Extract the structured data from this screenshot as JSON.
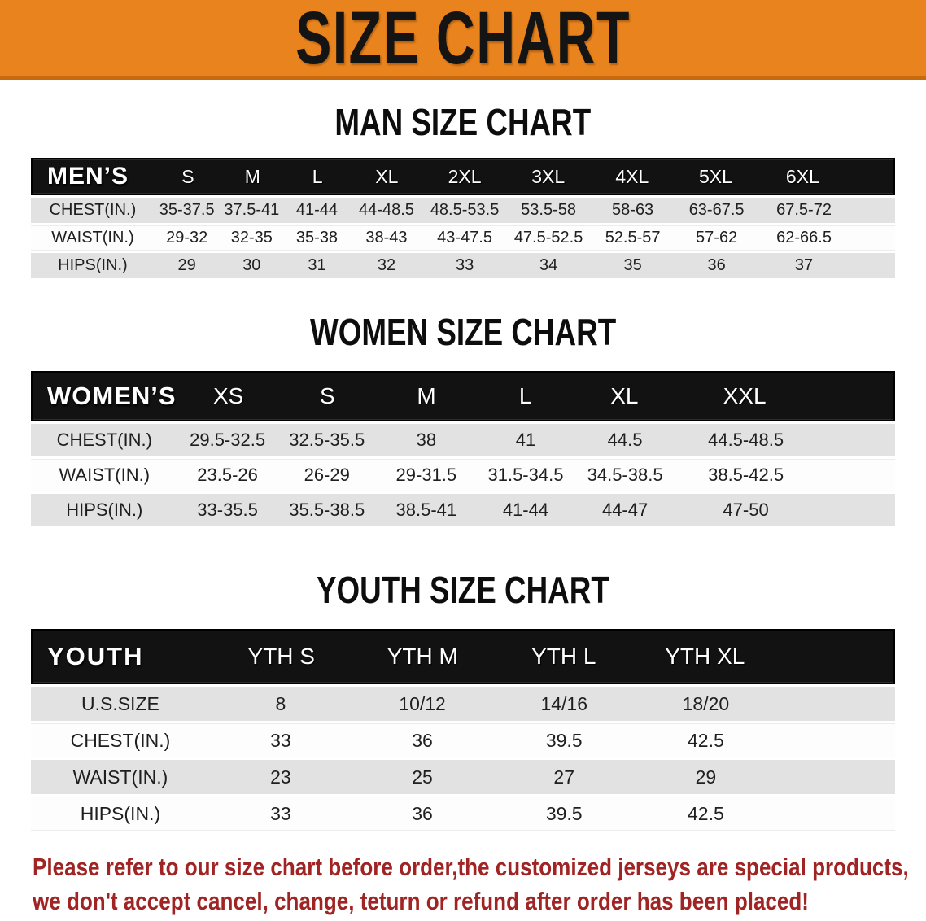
{
  "banner": {
    "title": "SIZE CHART"
  },
  "colors": {
    "banner_orange": "#E8831D",
    "header_black": "#121212",
    "row_gray": "#E2E2E2",
    "disclaimer_red": "#A02423"
  },
  "sections": {
    "men": {
      "heading": "MAN SIZE CHART",
      "corner": "MEN’S",
      "columns": [
        "S",
        "M",
        "L",
        "XL",
        "2XL",
        "3XL",
        "4XL",
        "5XL",
        "6XL"
      ],
      "rows": [
        {
          "label": "CHEST(IN.)",
          "values": [
            "35-37.5",
            "37.5-41",
            "41-44",
            "44-48.5",
            "48.5-53.5",
            "53.5-58",
            "58-63",
            "63-67.5",
            "67.5-72"
          ]
        },
        {
          "label": "WAIST(IN.)",
          "values": [
            "29-32",
            "32-35",
            "35-38",
            "38-43",
            "43-47.5",
            "47.5-52.5",
            "52.5-57",
            "57-62",
            "62-66.5"
          ]
        },
        {
          "label": "HIPS(IN.)",
          "values": [
            "29",
            "30",
            "31",
            "32",
            "33",
            "34",
            "35",
            "36",
            "37"
          ]
        }
      ]
    },
    "women": {
      "heading": "WOMEN SIZE CHART",
      "corner": "WOMEN’S",
      "columns": [
        "XS",
        "S",
        "M",
        "L",
        "XL",
        "XXL"
      ],
      "rows": [
        {
          "label": "CHEST(IN.)",
          "values": [
            "29.5-32.5",
            "32.5-35.5",
            "38",
            "41",
            "44.5",
            "44.5-48.5"
          ]
        },
        {
          "label": "WAIST(IN.)",
          "values": [
            "23.5-26",
            "26-29",
            "29-31.5",
            "31.5-34.5",
            "34.5-38.5",
            "38.5-42.5"
          ]
        },
        {
          "label": "HIPS(IN.)",
          "values": [
            "33-35.5",
            "35.5-38.5",
            "38.5-41",
            "41-44",
            "44-47",
            "47-50"
          ]
        }
      ]
    },
    "youth": {
      "heading": "YOUTH SIZE CHART",
      "corner": "YOUTH",
      "columns": [
        "YTH S",
        "YTH M",
        "YTH L",
        "YTH XL"
      ],
      "rows": [
        {
          "label": "U.S.SIZE",
          "values": [
            "8",
            "10/12",
            "14/16",
            "18/20"
          ]
        },
        {
          "label": "CHEST(IN.)",
          "values": [
            "33",
            "36",
            "39.5",
            "42.5"
          ]
        },
        {
          "label": "WAIST(IN.)",
          "values": [
            "23",
            "25",
            "27",
            "29"
          ]
        },
        {
          "label": "HIPS(IN.)",
          "values": [
            "33",
            "36",
            "39.5",
            "42.5"
          ]
        }
      ]
    }
  },
  "disclaimer": {
    "line1": "Please refer to our size chart before order,the customized jerseys are special products,",
    "line2": "we don't accept cancel, change, teturn or refund after order has been placed!"
  }
}
